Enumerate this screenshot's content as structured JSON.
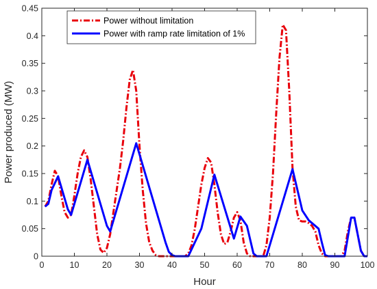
{
  "chart_data": {
    "type": "line",
    "title": "",
    "xlabel": "Hour",
    "ylabel": "Power produced (MW)",
    "xlim": [
      0,
      100
    ],
    "ylim": [
      0,
      0.45
    ],
    "xticks": [
      0,
      10,
      20,
      30,
      40,
      50,
      60,
      70,
      80,
      90,
      100
    ],
    "xtick_labels": [
      "0",
      "10",
      "20",
      "30",
      "40",
      "50",
      "60",
      "70",
      "80",
      "90",
      "100"
    ],
    "yticks": [
      0,
      0.05,
      0.1,
      0.15,
      0.2,
      0.25,
      0.3,
      0.35,
      0.4,
      0.45
    ],
    "ytick_labels": [
      "0",
      "0.05",
      "0.1",
      "0.15",
      "0.2",
      "0.25",
      "0.3",
      "0.35",
      "0.4",
      "0.45"
    ],
    "grid": false,
    "legend_position": "top-left",
    "series": [
      {
        "name": "Power without limitation",
        "color": "#e8000b",
        "style": "dashdot",
        "x": [
          1,
          2,
          3,
          4,
          5,
          6,
          7,
          8,
          9,
          10,
          11,
          12,
          13,
          14,
          15,
          16,
          17,
          18,
          19,
          20,
          21,
          22,
          23,
          24,
          25,
          26,
          27,
          28,
          29,
          30,
          31,
          32,
          33,
          34,
          35,
          36,
          37,
          38,
          39,
          40,
          41,
          42,
          43,
          44,
          45,
          46,
          47,
          48,
          49,
          50,
          51,
          52,
          53,
          54,
          55,
          56,
          57,
          58,
          59,
          60,
          61,
          62,
          63,
          64,
          65,
          66,
          67,
          68,
          69,
          70,
          71,
          72,
          73,
          74,
          75,
          76,
          77,
          78,
          79,
          80,
          81,
          82,
          83,
          84,
          85,
          86,
          87,
          88,
          89,
          90,
          91,
          92,
          93,
          94,
          95,
          96,
          97,
          98,
          99,
          100
        ],
        "y": [
          0.09,
          0.1,
          0.13,
          0.155,
          0.145,
          0.11,
          0.08,
          0.07,
          0.075,
          0.11,
          0.15,
          0.18,
          0.192,
          0.18,
          0.14,
          0.09,
          0.04,
          0.012,
          0.006,
          0.015,
          0.04,
          0.08,
          0.12,
          0.16,
          0.21,
          0.27,
          0.32,
          0.338,
          0.3,
          0.2,
          0.12,
          0.06,
          0.025,
          0.01,
          0.002,
          0,
          0,
          0,
          0,
          0,
          0,
          0,
          0,
          0,
          0.005,
          0.02,
          0.05,
          0.09,
          0.13,
          0.16,
          0.178,
          0.17,
          0.13,
          0.08,
          0.04,
          0.022,
          0.025,
          0.045,
          0.07,
          0.08,
          0.065,
          0.025,
          0.005,
          0,
          0,
          0,
          0,
          0,
          0.02,
          0.07,
          0.15,
          0.26,
          0.36,
          0.42,
          0.41,
          0.3,
          0.16,
          0.09,
          0.065,
          0.063,
          0.063,
          0.06,
          0.055,
          0.045,
          0.02,
          0.005,
          0,
          0,
          0,
          0,
          0,
          0,
          0.01,
          0.045,
          0.07,
          0.07,
          0.04,
          0.01,
          0,
          0
        ]
      },
      {
        "name": "Power with ramp rate limitation of 1%",
        "color": "#0000ff",
        "style": "solid",
        "x": [
          1,
          2,
          3,
          5,
          8,
          9,
          14,
          20,
          21,
          29,
          38,
          39,
          40,
          41,
          42,
          43,
          44,
          45,
          49,
          53,
          59,
          61,
          63,
          65,
          66,
          67,
          68,
          69,
          77,
          80,
          82,
          85,
          86,
          87,
          88,
          89,
          90,
          91,
          92,
          93,
          95,
          96,
          97,
          98,
          99,
          100
        ],
        "y": [
          0.09,
          0.095,
          0.12,
          0.145,
          0.085,
          0.075,
          0.175,
          0.055,
          0.045,
          0.205,
          0.025,
          0.008,
          0.002,
          0,
          0,
          0,
          0,
          0,
          0.05,
          0.148,
          0.032,
          0.072,
          0.055,
          0.005,
          0,
          0,
          0,
          0,
          0.158,
          0.083,
          0.065,
          0.05,
          0.025,
          0.002,
          0,
          0,
          0,
          0,
          0,
          0,
          0.07,
          0.07,
          0.04,
          0.01,
          0,
          0
        ]
      }
    ]
  }
}
